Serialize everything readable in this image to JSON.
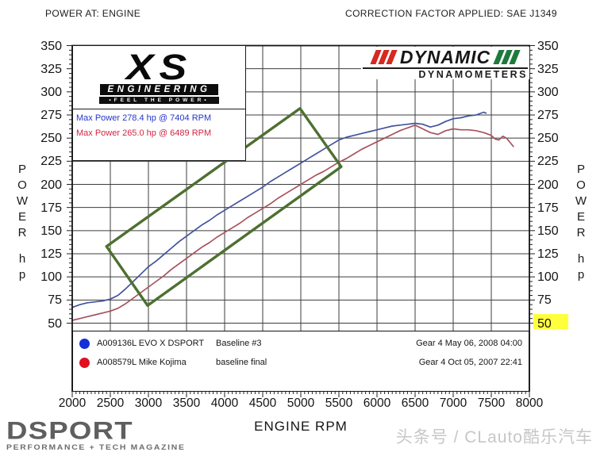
{
  "header": {
    "left": "POWER AT: ENGINE",
    "right": "CORRECTION FACTOR APPLIED: SAE J1349"
  },
  "xs_logo": {
    "line1": "XS",
    "line2": "ENGINEERING",
    "tagline": "•FEEL THE POWER•"
  },
  "dyno_logo": {
    "name": "DYNAMIC",
    "sub": "DYNAMOMETERS",
    "stripe_red": "#d42a20",
    "stripe_green": "#1e7a3c"
  },
  "max_power_box": {
    "line1": {
      "text": "Max Power 278.4 hp @ 7404 RPM",
      "color": "#2636c8"
    },
    "line2": {
      "text": "Max Power 265.0 hp @ 6489 RPM",
      "color": "#d42545"
    }
  },
  "chart_data": {
    "type": "line",
    "xlabel": "ENGINE RPM",
    "ylabel": "POWER",
    "yunit": "hp",
    "xlim": [
      2000,
      8000
    ],
    "ylim": [
      50,
      350
    ],
    "x_ticks": [
      2000,
      2500,
      3000,
      3500,
      4000,
      4500,
      5000,
      5500,
      6000,
      6500,
      7000,
      7500,
      8000
    ],
    "y_ticks": [
      50,
      75,
      100,
      125,
      150,
      175,
      200,
      225,
      250,
      275,
      300,
      325,
      350
    ],
    "grid": {
      "x_every": 500,
      "y_every": 25,
      "on": true,
      "color": "#3c3c3c"
    },
    "highlight": {
      "value": 50,
      "side": "right",
      "color": "#ffff3b"
    },
    "series": [
      {
        "name": "A009136L EVO X DSPORT",
        "run": "Baseline #3",
        "gear_time": "Gear 4 May 06, 2008 04:00",
        "color": "#43539c",
        "dot_color": "#1430d6",
        "max_power_hp": 278.4,
        "max_power_rpm": 7404,
        "points": [
          [
            2000,
            67
          ],
          [
            2100,
            70
          ],
          [
            2200,
            72
          ],
          [
            2300,
            73
          ],
          [
            2400,
            74
          ],
          [
            2500,
            76
          ],
          [
            2600,
            80
          ],
          [
            2700,
            87
          ],
          [
            2800,
            95
          ],
          [
            2900,
            103
          ],
          [
            3000,
            111
          ],
          [
            3100,
            117
          ],
          [
            3200,
            124
          ],
          [
            3300,
            131
          ],
          [
            3400,
            138
          ],
          [
            3500,
            144
          ],
          [
            3600,
            150
          ],
          [
            3700,
            156
          ],
          [
            3800,
            161
          ],
          [
            3900,
            167
          ],
          [
            4000,
            172
          ],
          [
            4100,
            177
          ],
          [
            4200,
            182
          ],
          [
            4300,
            187
          ],
          [
            4400,
            192
          ],
          [
            4500,
            197
          ],
          [
            4600,
            203
          ],
          [
            4700,
            208
          ],
          [
            4800,
            213
          ],
          [
            4900,
            218
          ],
          [
            5000,
            223
          ],
          [
            5100,
            228
          ],
          [
            5200,
            233
          ],
          [
            5300,
            238
          ],
          [
            5400,
            243
          ],
          [
            5500,
            248
          ],
          [
            5600,
            251
          ],
          [
            5700,
            253
          ],
          [
            5800,
            255
          ],
          [
            5900,
            257
          ],
          [
            6000,
            259
          ],
          [
            6100,
            261
          ],
          [
            6200,
            263
          ],
          [
            6300,
            264
          ],
          [
            6400,
            265
          ],
          [
            6500,
            266
          ],
          [
            6600,
            265
          ],
          [
            6700,
            262
          ],
          [
            6800,
            264
          ],
          [
            6900,
            268
          ],
          [
            7000,
            271
          ],
          [
            7100,
            272
          ],
          [
            7200,
            274
          ],
          [
            7300,
            275
          ],
          [
            7400,
            278
          ],
          [
            7430,
            277
          ]
        ]
      },
      {
        "name": "A008579L Mike Kojima",
        "run": "baseline final",
        "gear_time": "Gear 4 Oct 05, 2007 22:41",
        "color": "#a8525e",
        "dot_color": "#e01020",
        "max_power_hp": 265.0,
        "max_power_rpm": 6489,
        "points": [
          [
            2000,
            53
          ],
          [
            2100,
            55
          ],
          [
            2200,
            57
          ],
          [
            2300,
            59
          ],
          [
            2400,
            61
          ],
          [
            2500,
            63
          ],
          [
            2600,
            66
          ],
          [
            2700,
            71
          ],
          [
            2800,
            77
          ],
          [
            2900,
            83
          ],
          [
            3000,
            89
          ],
          [
            3100,
            95
          ],
          [
            3200,
            101
          ],
          [
            3300,
            108
          ],
          [
            3400,
            114
          ],
          [
            3500,
            120
          ],
          [
            3600,
            126
          ],
          [
            3700,
            132
          ],
          [
            3800,
            137
          ],
          [
            3900,
            143
          ],
          [
            4000,
            148
          ],
          [
            4100,
            153
          ],
          [
            4200,
            158
          ],
          [
            4300,
            164
          ],
          [
            4400,
            169
          ],
          [
            4500,
            174
          ],
          [
            4600,
            179
          ],
          [
            4700,
            185
          ],
          [
            4800,
            190
          ],
          [
            4900,
            195
          ],
          [
            5000,
            200
          ],
          [
            5100,
            205
          ],
          [
            5200,
            210
          ],
          [
            5300,
            214
          ],
          [
            5400,
            219
          ],
          [
            5500,
            224
          ],
          [
            5600,
            228
          ],
          [
            5700,
            233
          ],
          [
            5800,
            238
          ],
          [
            5900,
            242
          ],
          [
            6000,
            246
          ],
          [
            6100,
            250
          ],
          [
            6200,
            254
          ],
          [
            6300,
            258
          ],
          [
            6400,
            261
          ],
          [
            6500,
            264
          ],
          [
            6600,
            260
          ],
          [
            6700,
            256
          ],
          [
            6800,
            254
          ],
          [
            6900,
            258
          ],
          [
            7000,
            260
          ],
          [
            7100,
            259
          ],
          [
            7200,
            259
          ],
          [
            7300,
            258
          ],
          [
            7400,
            256
          ],
          [
            7500,
            253
          ],
          [
            7550,
            249
          ],
          [
            7600,
            248
          ],
          [
            7650,
            252
          ],
          [
            7700,
            250
          ],
          [
            7750,
            245
          ],
          [
            7790,
            241
          ]
        ]
      }
    ],
    "annotation_rect": {
      "color": "#4d7030",
      "points_rpm_hp": [
        [
          2450,
          133
        ],
        [
          4990,
          282
        ],
        [
          5530,
          219
        ],
        [
          2990,
          69
        ]
      ]
    }
  },
  "footer": {
    "brand": "DSPORT",
    "brand_sub": "PERFORMANCE + TECH MAGAZINE",
    "watermark": "头条号 / CLauto酷乐汽车"
  }
}
